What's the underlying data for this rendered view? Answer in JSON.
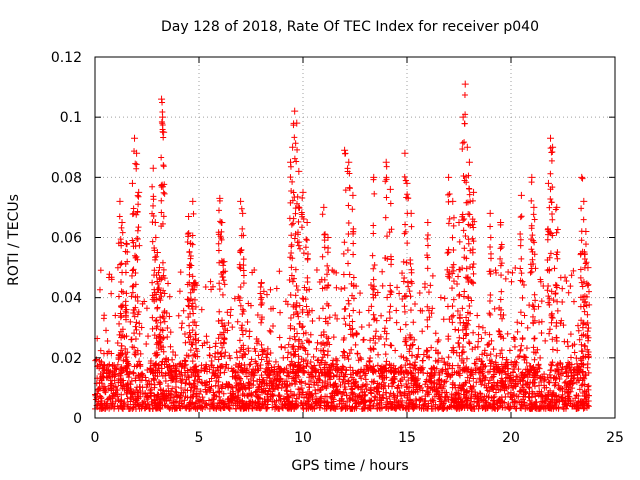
{
  "chart_data": {
    "type": "scatter",
    "title": "Day 128 of 2018, Rate Of TEC Index for receiver p040",
    "xlabel": "GPS time / hours",
    "ylabel": "ROTI / TECUs",
    "xlim": [
      0,
      25
    ],
    "ylim": [
      0,
      0.12
    ],
    "xticks": [
      0,
      5,
      10,
      15,
      20,
      25
    ],
    "yticks": [
      0,
      0.02,
      0.04,
      0.06,
      0.08,
      0.1,
      0.12
    ],
    "xtick_labels": [
      "0",
      "5",
      "10",
      "15",
      "20",
      "25"
    ],
    "ytick_labels": [
      "0",
      "0.02",
      "0.04",
      "0.06",
      "0.08",
      "0.1",
      "0.12"
    ],
    "grid": true,
    "marker": "+",
    "color": "#ff0000",
    "x_data_range": [
      0,
      23.75
    ],
    "baseline_roti_range": [
      0.003,
      0.018
    ],
    "series": [
      {
        "name": "p040 ROTI",
        "points": [
          [
            1.2,
            0.072
          ],
          [
            1.3,
            0.065
          ],
          [
            1.5,
            0.058
          ],
          [
            1.8,
            0.078
          ],
          [
            1.9,
            0.093
          ],
          [
            2.0,
            0.088
          ],
          [
            2.1,
            0.075
          ],
          [
            2.8,
            0.083
          ],
          [
            2.9,
            0.065
          ],
          [
            3.0,
            0.055
          ],
          [
            3.2,
            0.106
          ],
          [
            3.25,
            0.1
          ],
          [
            3.3,
            0.095
          ],
          [
            3.1,
            0.05
          ],
          [
            4.5,
            0.067
          ],
          [
            4.7,
            0.072
          ],
          [
            4.6,
            0.058
          ],
          [
            4.8,
            0.045
          ],
          [
            6.0,
            0.073
          ],
          [
            6.1,
            0.065
          ],
          [
            6.2,
            0.052
          ],
          [
            7.0,
            0.072
          ],
          [
            7.1,
            0.068
          ],
          [
            8.0,
            0.045
          ],
          [
            9.6,
            0.102
          ],
          [
            9.7,
            0.098
          ],
          [
            9.5,
            0.09
          ],
          [
            9.4,
            0.085
          ],
          [
            9.8,
            0.082
          ],
          [
            10.0,
            0.075
          ],
          [
            10.2,
            0.065
          ],
          [
            11.0,
            0.07
          ],
          [
            11.2,
            0.06
          ],
          [
            12.0,
            0.089
          ],
          [
            12.2,
            0.085
          ],
          [
            12.4,
            0.074
          ],
          [
            13.4,
            0.08
          ],
          [
            14.0,
            0.085
          ],
          [
            14.2,
            0.076
          ],
          [
            14.9,
            0.088
          ],
          [
            15.0,
            0.078
          ],
          [
            15.2,
            0.068
          ],
          [
            16.0,
            0.065
          ],
          [
            17.0,
            0.08
          ],
          [
            17.2,
            0.072
          ],
          [
            17.5,
            0.065
          ],
          [
            17.7,
            0.1
          ],
          [
            17.8,
            0.111
          ],
          [
            17.9,
            0.09
          ],
          [
            18.0,
            0.085
          ],
          [
            18.2,
            0.075
          ],
          [
            19.0,
            0.068
          ],
          [
            19.5,
            0.065
          ],
          [
            20.5,
            0.074
          ],
          [
            21.0,
            0.08
          ],
          [
            21.1,
            0.07
          ],
          [
            21.9,
            0.093
          ],
          [
            22.0,
            0.09
          ],
          [
            21.8,
            0.078
          ],
          [
            22.2,
            0.07
          ],
          [
            23.4,
            0.08
          ],
          [
            23.5,
            0.072
          ],
          [
            23.6,
            0.062
          ],
          [
            23.7,
            0.05
          ]
        ]
      }
    ]
  }
}
